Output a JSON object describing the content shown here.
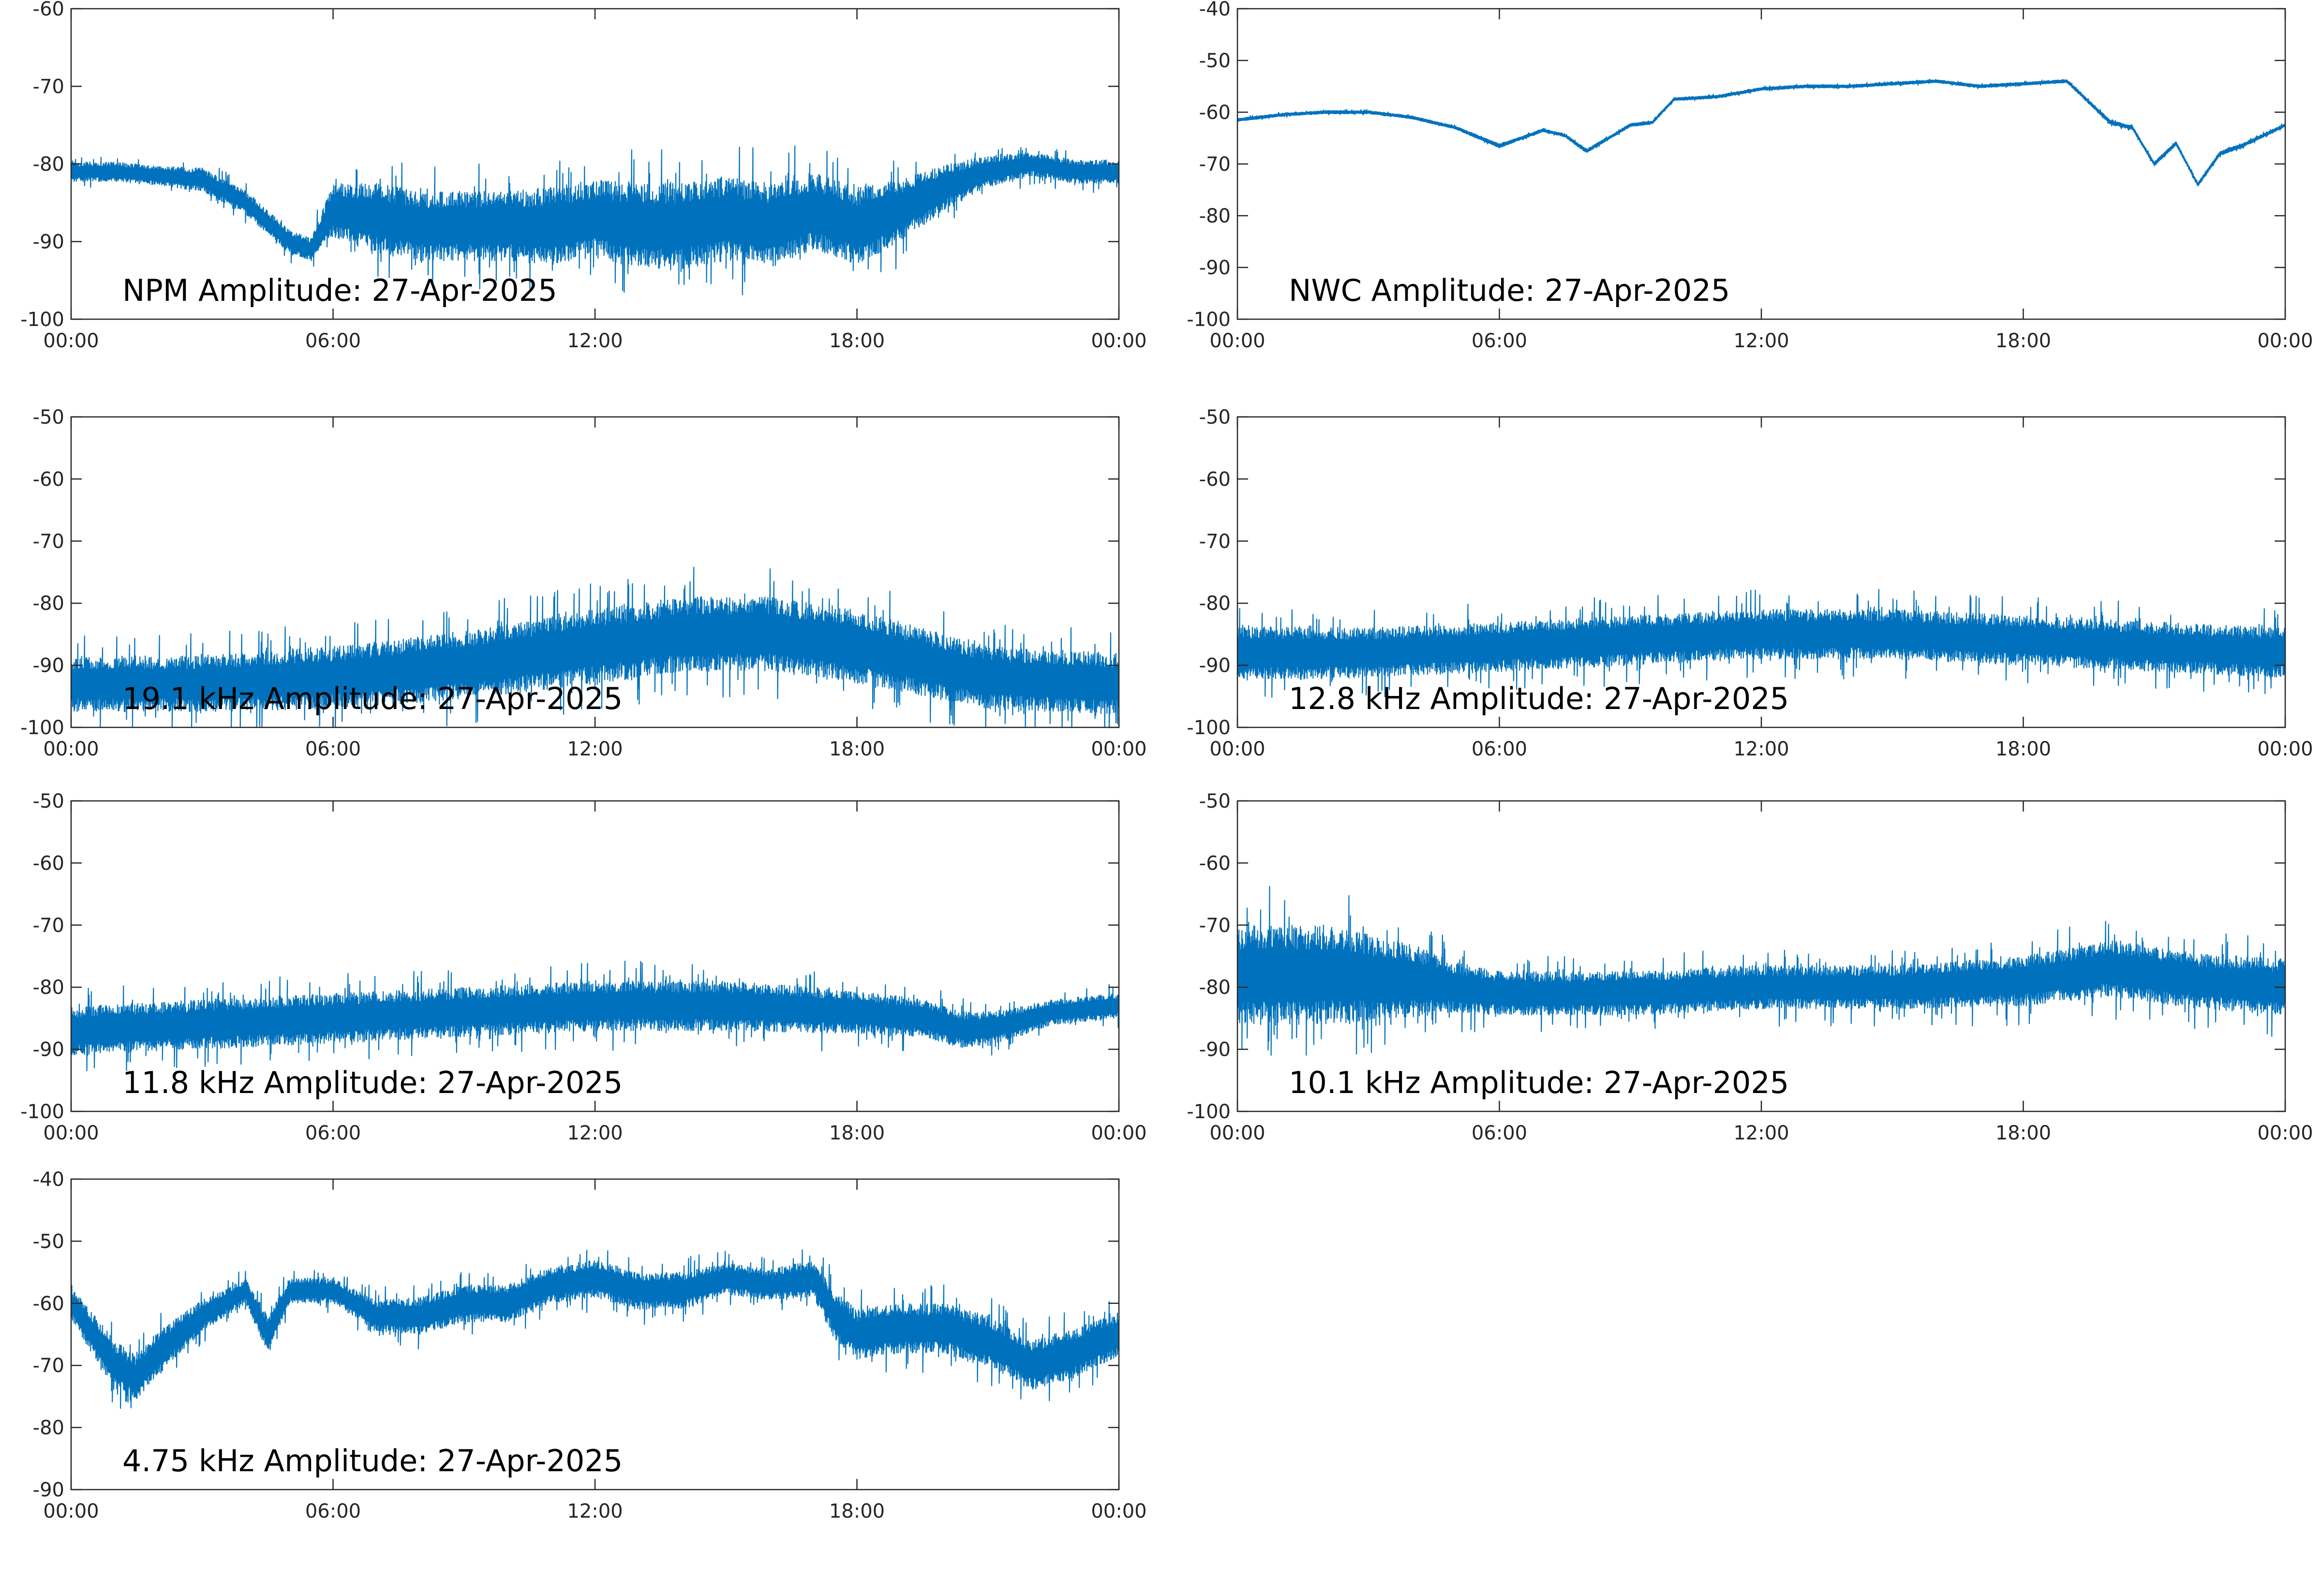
{
  "figure": {
    "background": "#ffffff",
    "line_color": "#0072BD",
    "axis_color": "#262626"
  },
  "chart_data": [
    {
      "type": "line",
      "title": "NPM Amplitude: 27-Apr-2025",
      "xlabel": "",
      "ylabel": "",
      "x_ticks": [
        "00:00",
        "06:00",
        "12:00",
        "18:00",
        "00:00"
      ],
      "x_hours": [
        0,
        1,
        2,
        3,
        4,
        5,
        5.5,
        6,
        7,
        8,
        9,
        10,
        11,
        12,
        13,
        14,
        15,
        16,
        17,
        18,
        19,
        20,
        21,
        22,
        23,
        24
      ],
      "ylim": [
        -100,
        -60
      ],
      "y_ticks": [
        -60,
        -70,
        -80,
        -90,
        -100
      ],
      "series": [
        {
          "values": [
            -81,
            -81,
            -81.5,
            -82,
            -85,
            -90,
            -91,
            -86,
            -87,
            -88,
            -88,
            -88,
            -88,
            -87,
            -88,
            -88,
            -87,
            -88,
            -86,
            -88,
            -86,
            -83,
            -81,
            -80,
            -81,
            -81
          ],
          "noise": [
            2.5,
            2.5,
            2.5,
            3,
            3,
            3,
            3,
            7,
            9,
            9,
            9,
            9,
            10,
            10,
            11,
            11,
            11,
            11,
            10,
            10,
            8,
            6,
            4,
            3,
            3,
            3
          ]
        }
      ],
      "grid": false
    },
    {
      "type": "line",
      "title": "NWC Amplitude: 27-Apr-2025",
      "xlabel": "",
      "ylabel": "",
      "x_ticks": [
        "00:00",
        "06:00",
        "12:00",
        "18:00",
        "00:00"
      ],
      "x_hours": [
        0,
        1,
        2,
        3,
        4,
        5,
        6,
        6.5,
        7,
        7.5,
        8,
        8.5,
        9,
        9.5,
        10,
        11,
        12,
        13,
        14,
        15,
        16,
        17,
        18,
        19,
        19.5,
        20,
        20.5,
        21,
        21.5,
        22,
        22.5,
        23,
        24
      ],
      "ylim": [
        -100,
        -40
      ],
      "y_ticks": [
        -40,
        -50,
        -60,
        -70,
        -80,
        -90,
        -100
      ],
      "series": [
        {
          "values": [
            -61.5,
            -60.5,
            -60,
            -60,
            -61,
            -63,
            -66.5,
            -65,
            -63.5,
            -64.5,
            -67.5,
            -65,
            -62.5,
            -62,
            -57.5,
            -57,
            -55.5,
            -55,
            -55,
            -54.5,
            -54,
            -55,
            -54.5,
            -54,
            -58,
            -62,
            -63,
            -70,
            -66,
            -74,
            -68,
            -66.5,
            -62.5
          ],
          "noise": [
            0.6,
            0.6,
            0.6,
            0.6,
            0.6,
            0.6,
            0.8,
            0.6,
            0.6,
            0.6,
            0.8,
            0.6,
            0.6,
            0.6,
            0.6,
            0.6,
            0.6,
            0.6,
            0.6,
            0.6,
            0.6,
            0.6,
            0.6,
            0.6,
            0.8,
            0.8,
            0.8,
            0.8,
            0.8,
            0.8,
            0.8,
            0.8,
            0.6
          ]
        }
      ],
      "grid": false
    },
    {
      "type": "line",
      "title": "19.1 kHz Amplitude: 27-Apr-2025",
      "xlabel": "",
      "ylabel": "",
      "x_ticks": [
        "00:00",
        "06:00",
        "12:00",
        "18:00",
        "00:00"
      ],
      "x_hours": [
        0,
        3,
        6,
        9,
        12,
        14,
        16,
        18,
        21,
        24
      ],
      "ylim": [
        -100,
        -50
      ],
      "y_ticks": [
        -50,
        -60,
        -70,
        -80,
        -90,
        -100
      ],
      "series": [
        {
          "values": [
            -93,
            -93,
            -92,
            -90,
            -87,
            -85,
            -85,
            -87,
            -92,
            -93
          ],
          "noise": [
            9,
            9,
            10,
            11,
            12,
            12,
            12,
            12,
            10,
            10
          ]
        }
      ],
      "grid": false
    },
    {
      "type": "line",
      "title": "12.8 kHz Amplitude: 27-Apr-2025",
      "xlabel": "",
      "ylabel": "",
      "x_ticks": [
        "00:00",
        "06:00",
        "12:00",
        "18:00",
        "00:00"
      ],
      "x_hours": [
        0,
        3,
        6,
        9,
        12,
        15,
        18,
        21,
        24
      ],
      "ylim": [
        -100,
        -50
      ],
      "y_ticks": [
        -50,
        -60,
        -70,
        -80,
        -90,
        -100
      ],
      "series": [
        {
          "values": [
            -88,
            -88,
            -87,
            -86,
            -85,
            -85,
            -86,
            -87,
            -88
          ],
          "noise": [
            9,
            8,
            8,
            8,
            8,
            8,
            8,
            8,
            8
          ]
        }
      ],
      "grid": false
    },
    {
      "type": "line",
      "title": "11.8 kHz Amplitude: 27-Apr-2025",
      "xlabel": "",
      "ylabel": "",
      "x_ticks": [
        "00:00",
        "06:00",
        "12:00",
        "18:00",
        "00:00"
      ],
      "x_hours": [
        0,
        3,
        6,
        9,
        12,
        15,
        18,
        19.5,
        20.5,
        21.5,
        22.5,
        24
      ],
      "ylim": [
        -100,
        -50
      ],
      "y_ticks": [
        -50,
        -60,
        -70,
        -80,
        -90,
        -100
      ],
      "series": [
        {
          "values": [
            -87,
            -86,
            -85,
            -84,
            -83,
            -83,
            -84,
            -85,
            -87,
            -86,
            -84,
            -83
          ],
          "noise": [
            8,
            8,
            8,
            8,
            8,
            8,
            7,
            6,
            6,
            5,
            4,
            4
          ]
        }
      ],
      "grid": false
    },
    {
      "type": "line",
      "title": "10.1 kHz Amplitude: 27-Apr-2025",
      "xlabel": "",
      "ylabel": "",
      "x_ticks": [
        "00:00",
        "06:00",
        "12:00",
        "18:00",
        "00:00"
      ],
      "x_hours": [
        0,
        2,
        4,
        5,
        6,
        9,
        12,
        15,
        18,
        20,
        21,
        22,
        24
      ],
      "ylim": [
        -100,
        -50
      ],
      "y_ticks": [
        -50,
        -60,
        -70,
        -80,
        -90,
        -100
      ],
      "series": [
        {
          "values": [
            -78,
            -78,
            -79,
            -80,
            -81,
            -81,
            -80,
            -80,
            -79,
            -77,
            -78,
            -79,
            -80
          ],
          "noise": [
            16,
            16,
            12,
            8,
            7,
            7,
            7,
            7,
            8,
            9,
            9,
            9,
            9
          ]
        }
      ],
      "grid": false
    },
    {
      "type": "line",
      "title": "4.75 kHz Amplitude: 27-Apr-2025",
      "xlabel": "",
      "ylabel": "",
      "x_ticks": [
        "00:00",
        "06:00",
        "12:00",
        "18:00",
        "00:00"
      ],
      "x_hours": [
        0,
        0.5,
        1,
        1.5,
        2,
        3,
        4,
        4.5,
        5,
        6,
        7,
        8,
        9,
        10,
        11,
        12,
        13,
        14,
        15,
        16,
        17,
        17.5,
        18,
        19,
        20,
        21,
        22,
        23,
        24
      ],
      "ylim": [
        -90,
        -40
      ],
      "y_ticks": [
        -40,
        -50,
        -60,
        -70,
        -80,
        -90
      ],
      "series": [
        {
          "values": [
            -60,
            -65,
            -70,
            -72,
            -68,
            -62,
            -58,
            -65,
            -58,
            -58,
            -62,
            -62,
            -60,
            -60,
            -57,
            -56,
            -58,
            -58,
            -56,
            -57,
            -56,
            -62,
            -65,
            -64,
            -64,
            -66,
            -70,
            -68,
            -65
          ],
          "noise": [
            5,
            7,
            8,
            7,
            7,
            5,
            4,
            6,
            4,
            4,
            5,
            6,
            6,
            6,
            6,
            6,
            6,
            6,
            5,
            5,
            6,
            8,
            8,
            8,
            8,
            8,
            8,
            8,
            7
          ]
        }
      ],
      "grid": false
    }
  ]
}
